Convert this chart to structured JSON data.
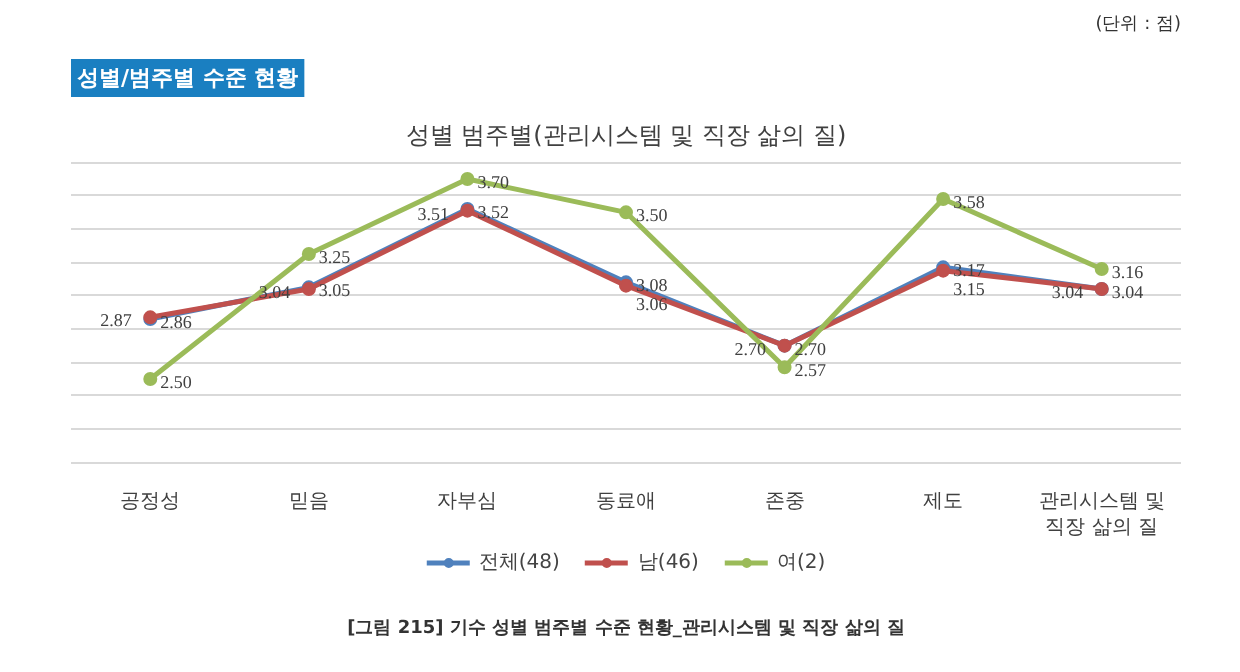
{
  "chart_data": {
    "type": "line",
    "title": "성별 범주별(관리시스템 및 직장 삶의 질)",
    "subtitle": "성별/범주별 수준 현황",
    "categories": [
      "공정성",
      "믿음",
      "자부심",
      "동료애",
      "존중",
      "제도",
      "관리시스템 및 직장 삶의 질"
    ],
    "series": [
      {
        "name": "전체(48)",
        "color": "#4f81bd",
        "values": [
          2.86,
          3.05,
          3.52,
          3.08,
          2.7,
          3.17,
          3.04
        ],
        "value_labels": [
          "2.86",
          "3.05",
          "3.52",
          "3.08",
          "2.70",
          "3.17",
          "3.04"
        ]
      },
      {
        "name": "남(46)",
        "color": "#c0504d",
        "values": [
          2.87,
          3.04,
          3.51,
          3.06,
          2.7,
          3.15,
          3.04
        ],
        "value_labels": [
          "2.87",
          "3.04",
          "3.51",
          "3.06",
          "2.70",
          "3.15",
          "3.04"
        ]
      },
      {
        "name": "여(2)",
        "color": "#9bbb59",
        "values": [
          2.5,
          3.25,
          3.7,
          3.5,
          2.57,
          3.58,
          3.16
        ],
        "value_labels": [
          "2.50",
          "3.25",
          "3.70",
          "3.50",
          "2.57",
          "3.58",
          "3.16"
        ]
      }
    ],
    "tick_labels": "x",
    "grid": "y",
    "marker": "circle",
    "line_style": "solid",
    "legend": "bottom",
    "annotations": [
      "(단위 : 점)",
      "[그림 215] 기수 성별 범주별 수준 현황_관리시스템 및 직장 삶의 질"
    ]
  }
}
